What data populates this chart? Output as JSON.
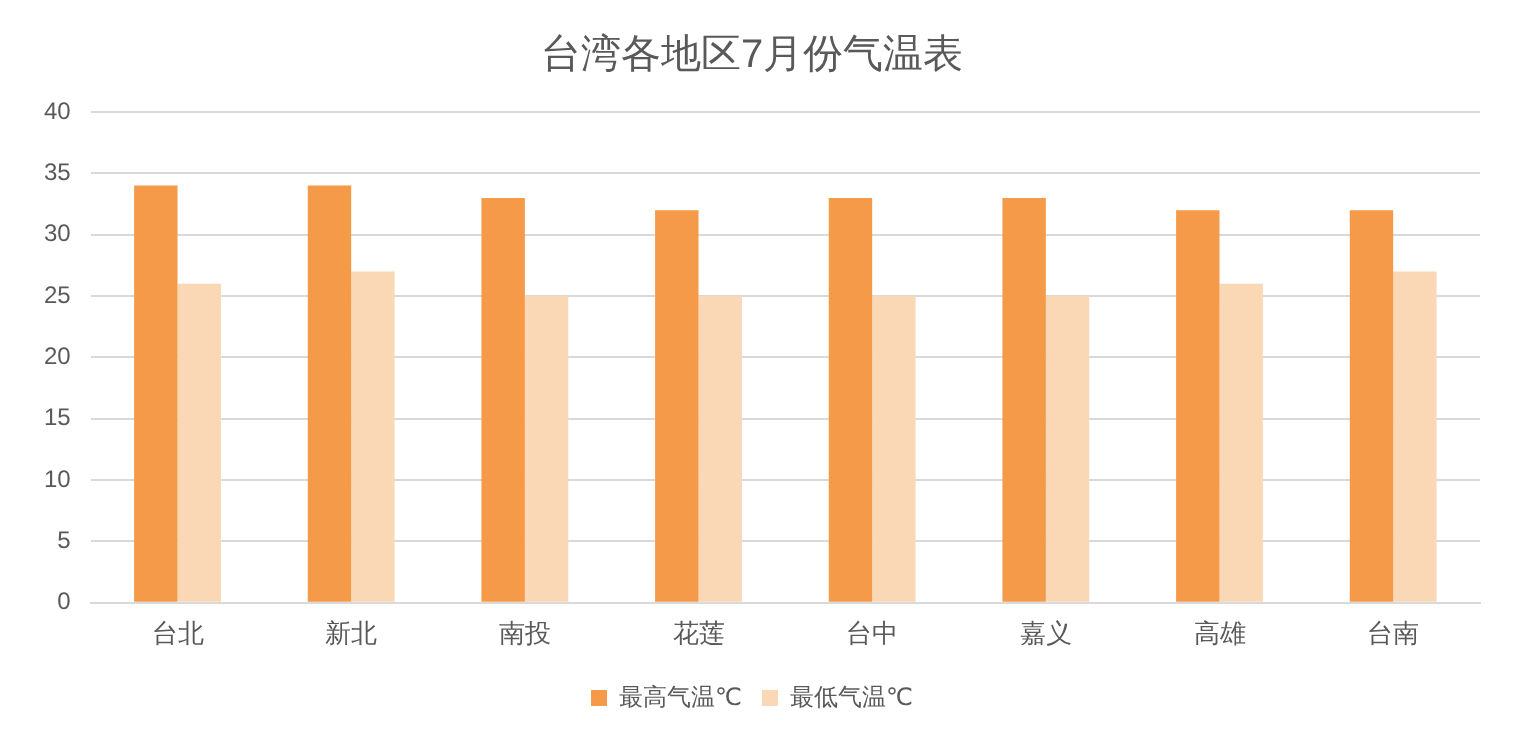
{
  "chart_data": {
    "type": "bar",
    "title": "台湾各地区7月份气温表",
    "categories": [
      "台北",
      "新北",
      "南投",
      "花莲",
      "台中",
      "嘉义",
      "高雄",
      "台南"
    ],
    "series": [
      {
        "name": "最高气温℃",
        "color": "#f59a48",
        "values": [
          34,
          34,
          33,
          32,
          33,
          33,
          32,
          32
        ]
      },
      {
        "name": "最低气温℃",
        "color": "#fad8b6",
        "values": [
          26,
          27,
          25,
          25,
          25,
          25,
          26,
          27
        ]
      }
    ],
    "ylim": [
      0,
      40
    ],
    "yticks": [
      0,
      5,
      10,
      15,
      20,
      25,
      30,
      35,
      40
    ],
    "grid": "y",
    "legend": "bottom"
  }
}
